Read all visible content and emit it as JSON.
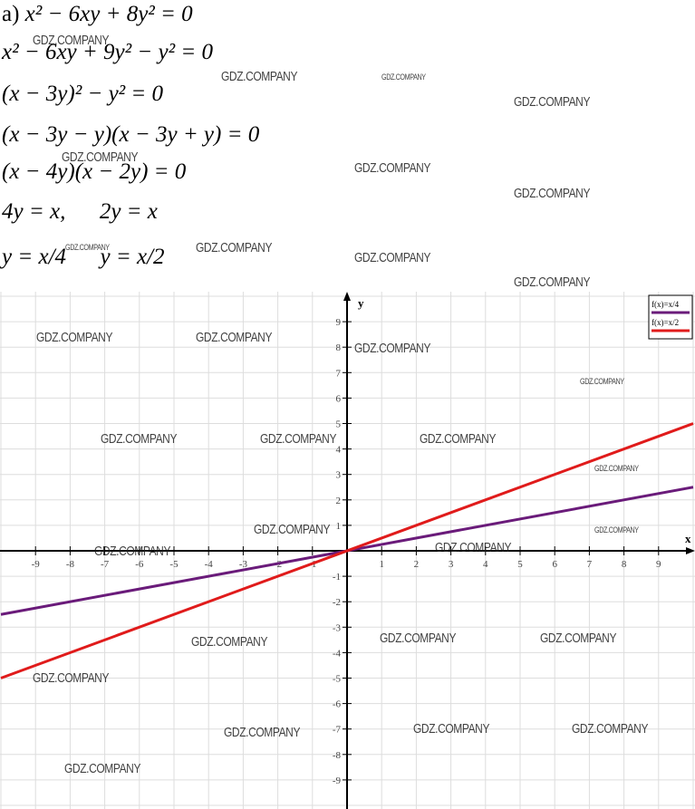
{
  "solution": {
    "part_label": "а)",
    "lines": [
      "x² − 6xy + 8y² = 0",
      "x² − 6xy + 9y² − y² = 0",
      "(x − 3y)² − y² = 0",
      "(x − 3y − y)(x − 3y + y) = 0",
      "(x − 4y)(x − 2y) = 0",
      "4y = x,      2y = x",
      "y = x/4      y = x/2"
    ]
  },
  "watermark": "GDZ.COMPANY",
  "chart_data": {
    "type": "line",
    "xlabel": "x",
    "ylabel": "y",
    "xlim": [
      -10,
      10
    ],
    "ylim": [
      -10,
      10
    ],
    "grid": true,
    "x_ticks": [
      -9,
      -8,
      -7,
      -6,
      -5,
      -4,
      -3,
      -2,
      -1,
      1,
      2,
      3,
      4,
      5,
      6,
      7,
      8,
      9
    ],
    "y_ticks": [
      9,
      8,
      7,
      6,
      5,
      4,
      3,
      2,
      1,
      -1,
      -2,
      -3,
      -4,
      -5,
      -6,
      -7,
      -8,
      -9
    ],
    "legend_position": "top-right",
    "series": [
      {
        "name": "f(x)=x/4",
        "slope": 0.25,
        "color": "#6a1b7a",
        "x": [
          -10,
          10
        ],
        "y": [
          -2.5,
          2.5
        ]
      },
      {
        "name": "f(x)=x/2",
        "slope": 0.5,
        "color": "#e01b1b",
        "x": [
          -10,
          10
        ],
        "y": [
          -5,
          5
        ]
      }
    ]
  }
}
